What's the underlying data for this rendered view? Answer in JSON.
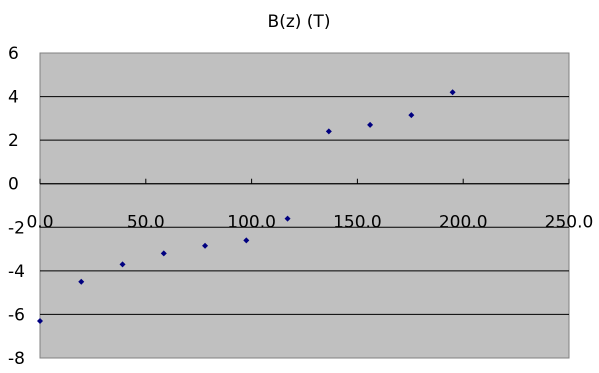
{
  "chart_data": {
    "type": "scatter",
    "title": "B(z) (T)",
    "xlabel": "",
    "ylabel": "",
    "xlim": [
      0,
      250
    ],
    "ylim": [
      -8,
      6
    ],
    "x_ticks": [
      0,
      50,
      100,
      150,
      200,
      250
    ],
    "x_tick_labels": [
      "0.0",
      "50.0",
      "100.0",
      "150.0",
      "200.0",
      "250.0"
    ],
    "y_ticks": [
      -8,
      -6,
      -4,
      -2,
      0,
      2,
      4,
      6
    ],
    "y_tick_labels": [
      "-8",
      "-6",
      "-4",
      "-2",
      "0",
      "2",
      "4",
      "6"
    ],
    "grid": "horizontal",
    "legend": "none",
    "plot_background": "#c0c0c0",
    "marker_color": "#000080",
    "points": [
      {
        "x": 0,
        "y": -6.3
      },
      {
        "x": 19.5,
        "y": -4.5
      },
      {
        "x": 39,
        "y": -3.7
      },
      {
        "x": 58.5,
        "y": -3.2
      },
      {
        "x": 78,
        "y": -2.85
      },
      {
        "x": 97.5,
        "y": -2.6
      },
      {
        "x": 117,
        "y": -1.6
      },
      {
        "x": 136.5,
        "y": 2.4
      },
      {
        "x": 156,
        "y": 2.7
      },
      {
        "x": 175.5,
        "y": 3.15
      },
      {
        "x": 195,
        "y": 4.2
      }
    ]
  }
}
